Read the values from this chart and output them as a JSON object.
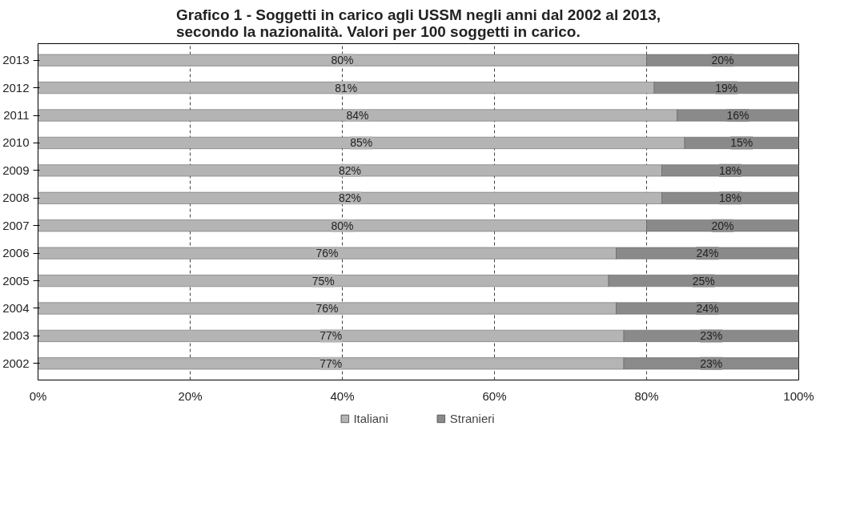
{
  "chart_data": {
    "type": "bar",
    "orientation": "horizontal",
    "stacked": true,
    "title": "Grafico 1 - Soggetti in carico agli USSM negli anni dal 2002 al 2013,\nsecondo la nazionalità. Valori per 100 soggetti in carico.",
    "categories": [
      "2013",
      "2012",
      "2011",
      "2010",
      "2009",
      "2008",
      "2007",
      "2006",
      "2005",
      "2004",
      "2003",
      "2002"
    ],
    "series": [
      {
        "name": "Italiani",
        "color": "#b4b4b4",
        "values": [
          80,
          81,
          84,
          85,
          82,
          82,
          80,
          76,
          75,
          76,
          77,
          77
        ],
        "value_labels": [
          "80%",
          "81%",
          "84%",
          "85%",
          "82%",
          "82%",
          "80%",
          "76%",
          "75%",
          "76%",
          "77%",
          "77%"
        ]
      },
      {
        "name": "Stranieri",
        "color": "#8a8a8a",
        "values": [
          20,
          19,
          16,
          15,
          18,
          18,
          20,
          24,
          25,
          24,
          23,
          23
        ],
        "value_labels": [
          "20%",
          "19%",
          "16%",
          "15%",
          "18%",
          "18%",
          "20%",
          "24%",
          "25%",
          "24%",
          "23%",
          "23%"
        ]
      }
    ],
    "xlim": [
      0,
      100
    ],
    "xticks": [
      {
        "value": 0,
        "label": "0%"
      },
      {
        "value": 20,
        "label": "20%"
      },
      {
        "value": 40,
        "label": "40%"
      },
      {
        "value": 60,
        "label": "60%"
      },
      {
        "value": 80,
        "label": "80%"
      },
      {
        "value": 100,
        "label": "100%"
      }
    ],
    "grid": "x",
    "legend": "bottom"
  }
}
